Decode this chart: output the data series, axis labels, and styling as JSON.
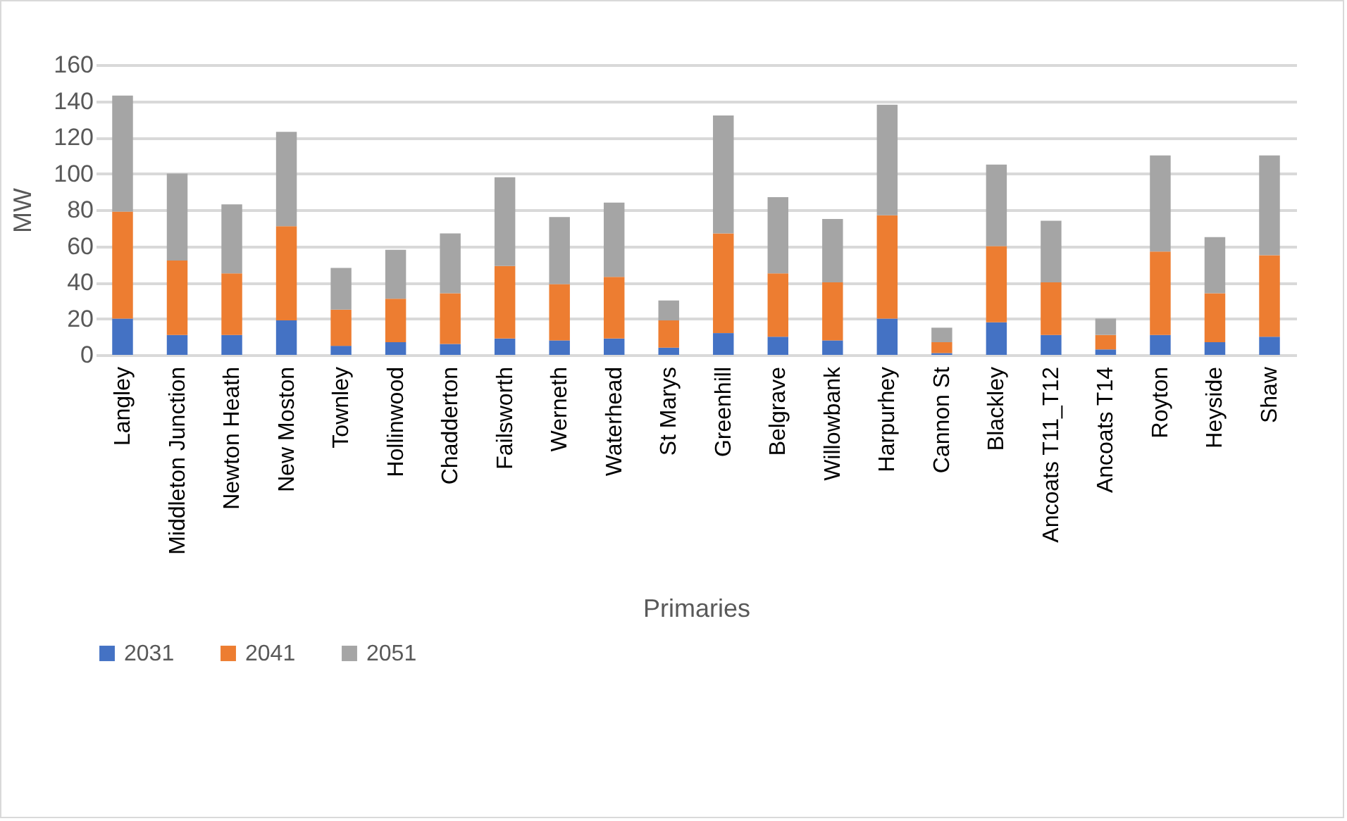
{
  "chart_data": {
    "type": "bar",
    "stacked": true,
    "xlabel": "Primaries",
    "ylabel": "MW",
    "categories": [
      "Langley",
      "Middleton Junction",
      "Newton Heath",
      "New Moston",
      "Townley",
      "Hollinwood",
      "Chadderton",
      "Failsworth",
      "Werneth",
      "Waterhead",
      "St Marys",
      "Greenhill",
      "Belgrave",
      "Willowbank",
      "Harpurhey",
      "Cannon St",
      "Blackley",
      "Ancoats T11_T12",
      "Ancoats T14",
      "Royton",
      "Heyside",
      "Shaw"
    ],
    "series": [
      {
        "name": "2031",
        "color": "#4472c4",
        "values": [
          20,
          11,
          11,
          19,
          5,
          7,
          6,
          9,
          8,
          9,
          4,
          12,
          10,
          8,
          20,
          1,
          18,
          11,
          3,
          11,
          7,
          10
        ]
      },
      {
        "name": "2041",
        "color": "#ed7d31",
        "values": [
          59,
          41,
          34,
          52,
          20,
          24,
          28,
          40,
          31,
          34,
          15,
          55,
          35,
          32,
          57,
          6,
          42,
          29,
          8,
          46,
          27,
          45
        ]
      },
      {
        "name": "2051",
        "color": "#a5a5a5",
        "values": [
          64,
          48,
          38,
          52,
          23,
          27,
          33,
          49,
          37,
          41,
          11,
          65,
          42,
          35,
          61,
          8,
          45,
          34,
          9,
          53,
          31,
          55
        ]
      }
    ],
    "ylim": [
      0,
      160
    ],
    "yticks": [
      0,
      20,
      40,
      60,
      80,
      100,
      120,
      140,
      160
    ],
    "grid": "y",
    "legend": "bottom"
  }
}
